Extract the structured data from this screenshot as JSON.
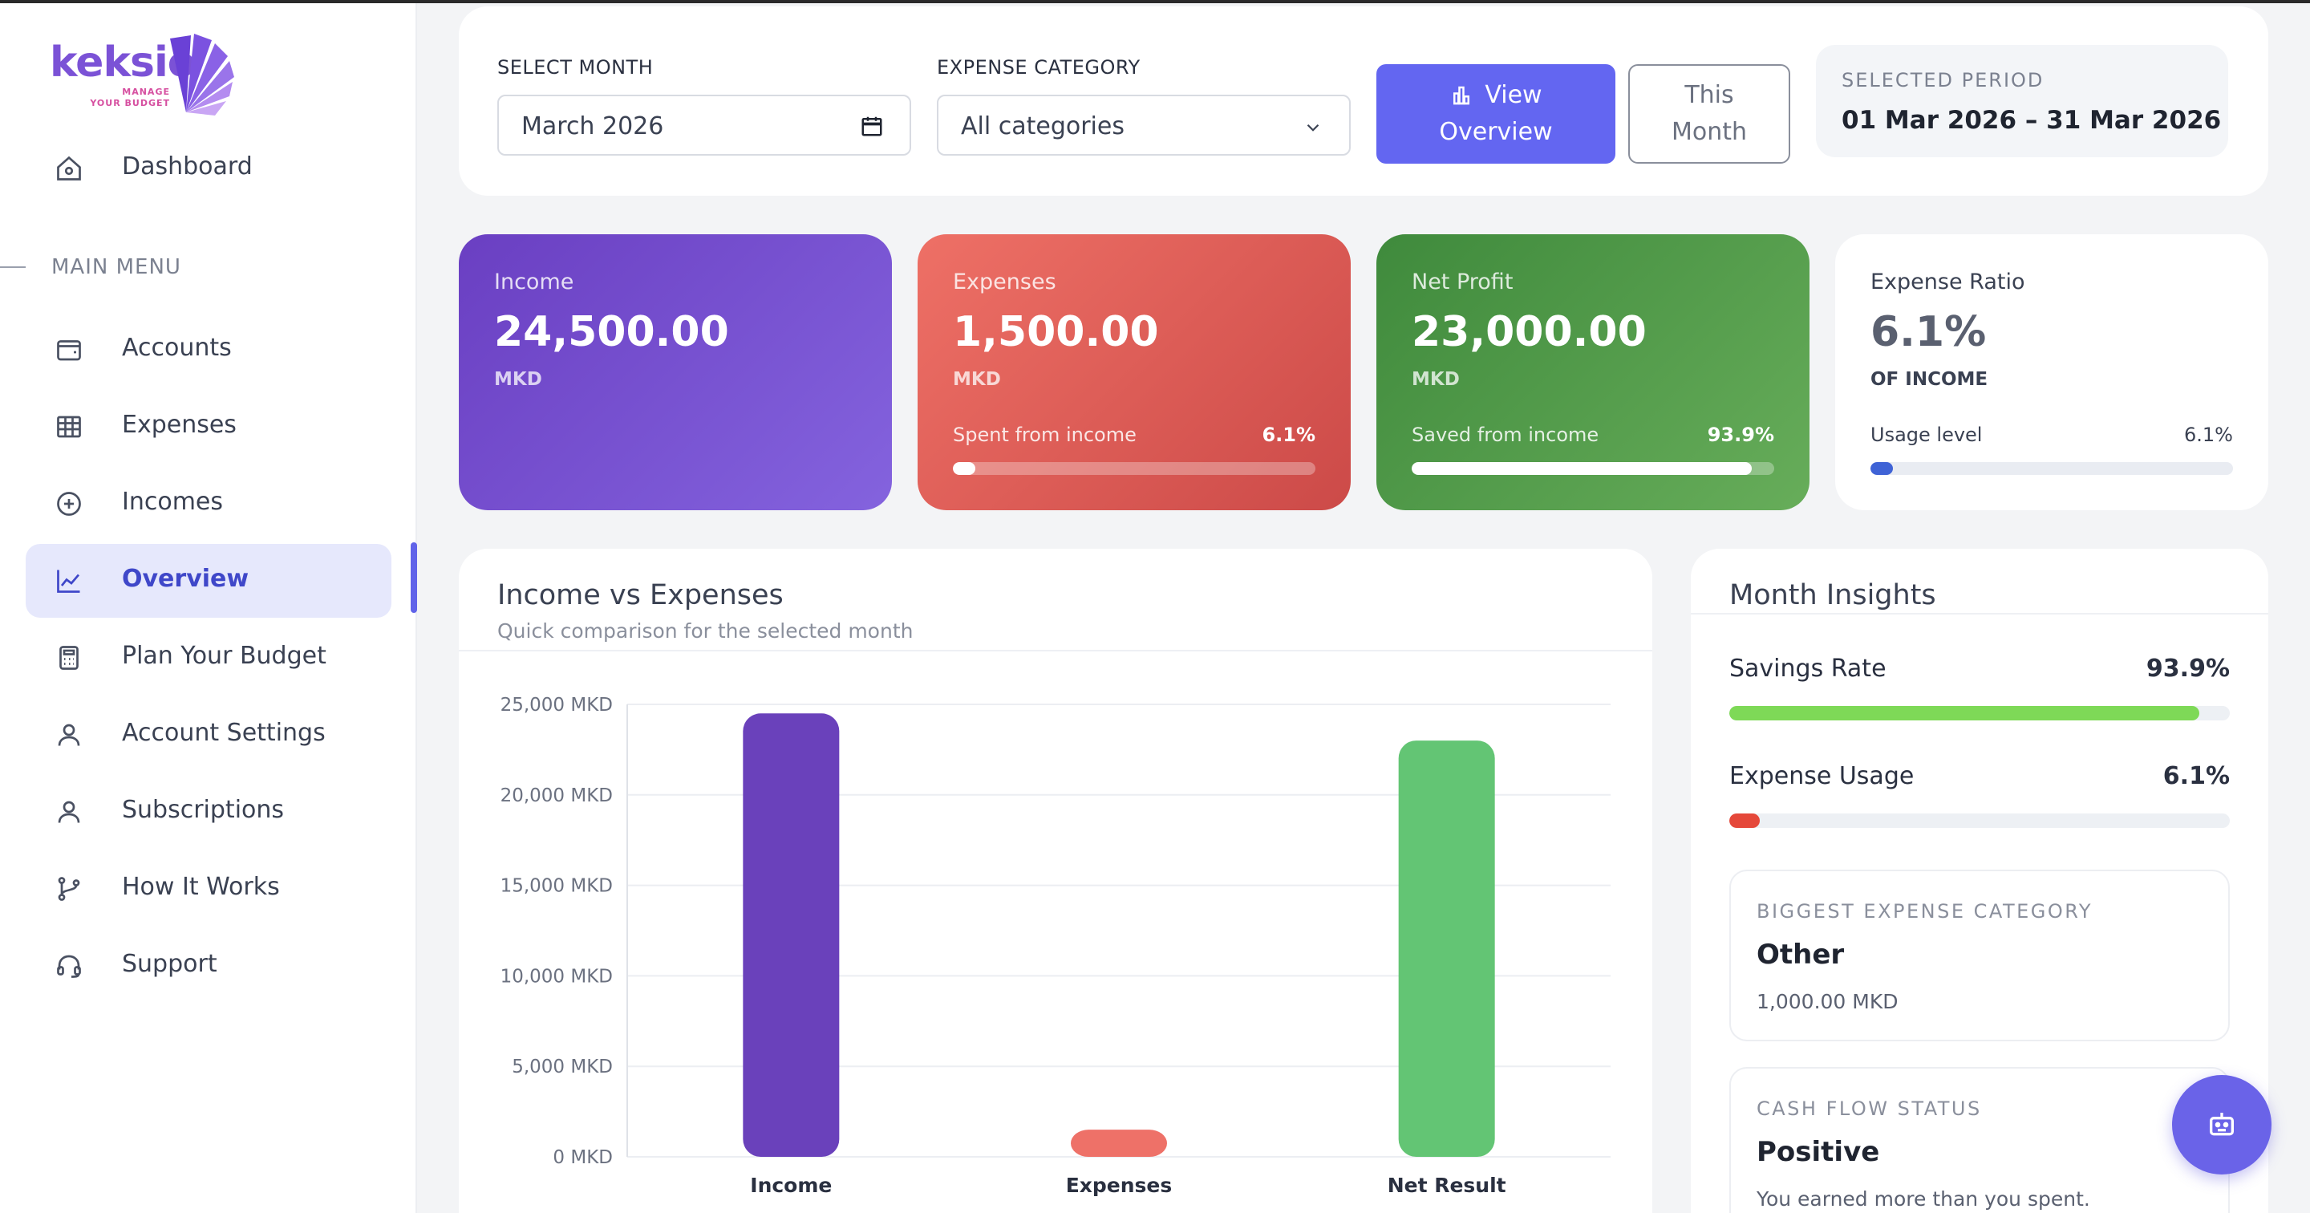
{
  "brand": {
    "name": "keksio",
    "tagline_line1": "MANAGE",
    "tagline_line2": "YOUR BUDGET"
  },
  "sidebar": {
    "top_item": {
      "label": "Dashboard",
      "icon": "home-icon"
    },
    "section_label": "MAIN MENU",
    "items": [
      {
        "label": "Accounts",
        "icon": "wallet-icon"
      },
      {
        "label": "Expenses",
        "icon": "grid-table-icon"
      },
      {
        "label": "Incomes",
        "icon": "plus-circle-icon"
      },
      {
        "label": "Overview",
        "icon": "line-chart-icon",
        "active": true
      },
      {
        "label": "Plan Your Budget",
        "icon": "calculator-icon"
      },
      {
        "label": "Account Settings",
        "icon": "user-icon"
      },
      {
        "label": "Subscriptions",
        "icon": "user-icon"
      },
      {
        "label": "How It Works",
        "icon": "git-branch-icon"
      },
      {
        "label": "Support",
        "icon": "headset-icon"
      }
    ]
  },
  "filters": {
    "month_label": "SELECT MONTH",
    "month_value": "March 2026",
    "category_label": "EXPENSE CATEGORY",
    "category_value": "All categories",
    "view_button_line1": "View",
    "view_button_line2": "Overview",
    "this_month_line1": "This",
    "this_month_line2": "Month",
    "period_label": "SELECTED PERIOD",
    "period_value": "01 Mar 2026 – 31 Mar 2026"
  },
  "stats": {
    "income": {
      "title": "Income",
      "value": "24,500.00",
      "unit": "MKD"
    },
    "expenses": {
      "title": "Expenses",
      "value": "1,500.00",
      "unit": "MKD",
      "progress_label": "Spent from income",
      "progress_text": "6.1%",
      "progress": 6.1
    },
    "net": {
      "title": "Net Profit",
      "value": "23,000.00",
      "unit": "MKD",
      "progress_label": "Saved from income",
      "progress_text": "93.9%",
      "progress": 93.9
    },
    "ratio": {
      "title": "Expense Ratio",
      "value": "6.1%",
      "unit": "OF INCOME",
      "progress_label": "Usage level",
      "progress_text": "6.1%",
      "progress": 6.1
    }
  },
  "chart": {
    "title": "Income vs Expenses",
    "subtitle": "Quick comparison for the selected month"
  },
  "chart_data": {
    "type": "bar",
    "categories": [
      "Income",
      "Expenses",
      "Net Result"
    ],
    "values": [
      24500,
      1500,
      23000
    ],
    "colors": [
      "#6a41bb",
      "#ee7168",
      "#63c574"
    ],
    "ylim": [
      0,
      25000
    ],
    "yticks": [
      "0 MKD",
      "5,000 MKD",
      "10,000 MKD",
      "15,000 MKD",
      "20,000 MKD",
      "25,000 MKD"
    ],
    "ytick_values": [
      0,
      5000,
      10000,
      15000,
      20000,
      25000
    ],
    "grid": true,
    "title": "",
    "xlabel": "",
    "ylabel": ""
  },
  "insights": {
    "title": "Month Insights",
    "savings_label": "Savings Rate",
    "savings_text": "93.9%",
    "savings": 93.9,
    "savings_color": "#7ed957",
    "usage_label": "Expense Usage",
    "usage_text": "6.1%",
    "usage": 6.1,
    "usage_color": "#e5483a",
    "biggest_label": "BIGGEST EXPENSE CATEGORY",
    "biggest_value": "Other",
    "biggest_amount": "1,000.00 MKD",
    "cashflow_label": "CASH FLOW STATUS",
    "cashflow_value": "Positive",
    "cashflow_note": "You earned more than you spent."
  },
  "fab": {
    "icon": "robot-icon"
  }
}
